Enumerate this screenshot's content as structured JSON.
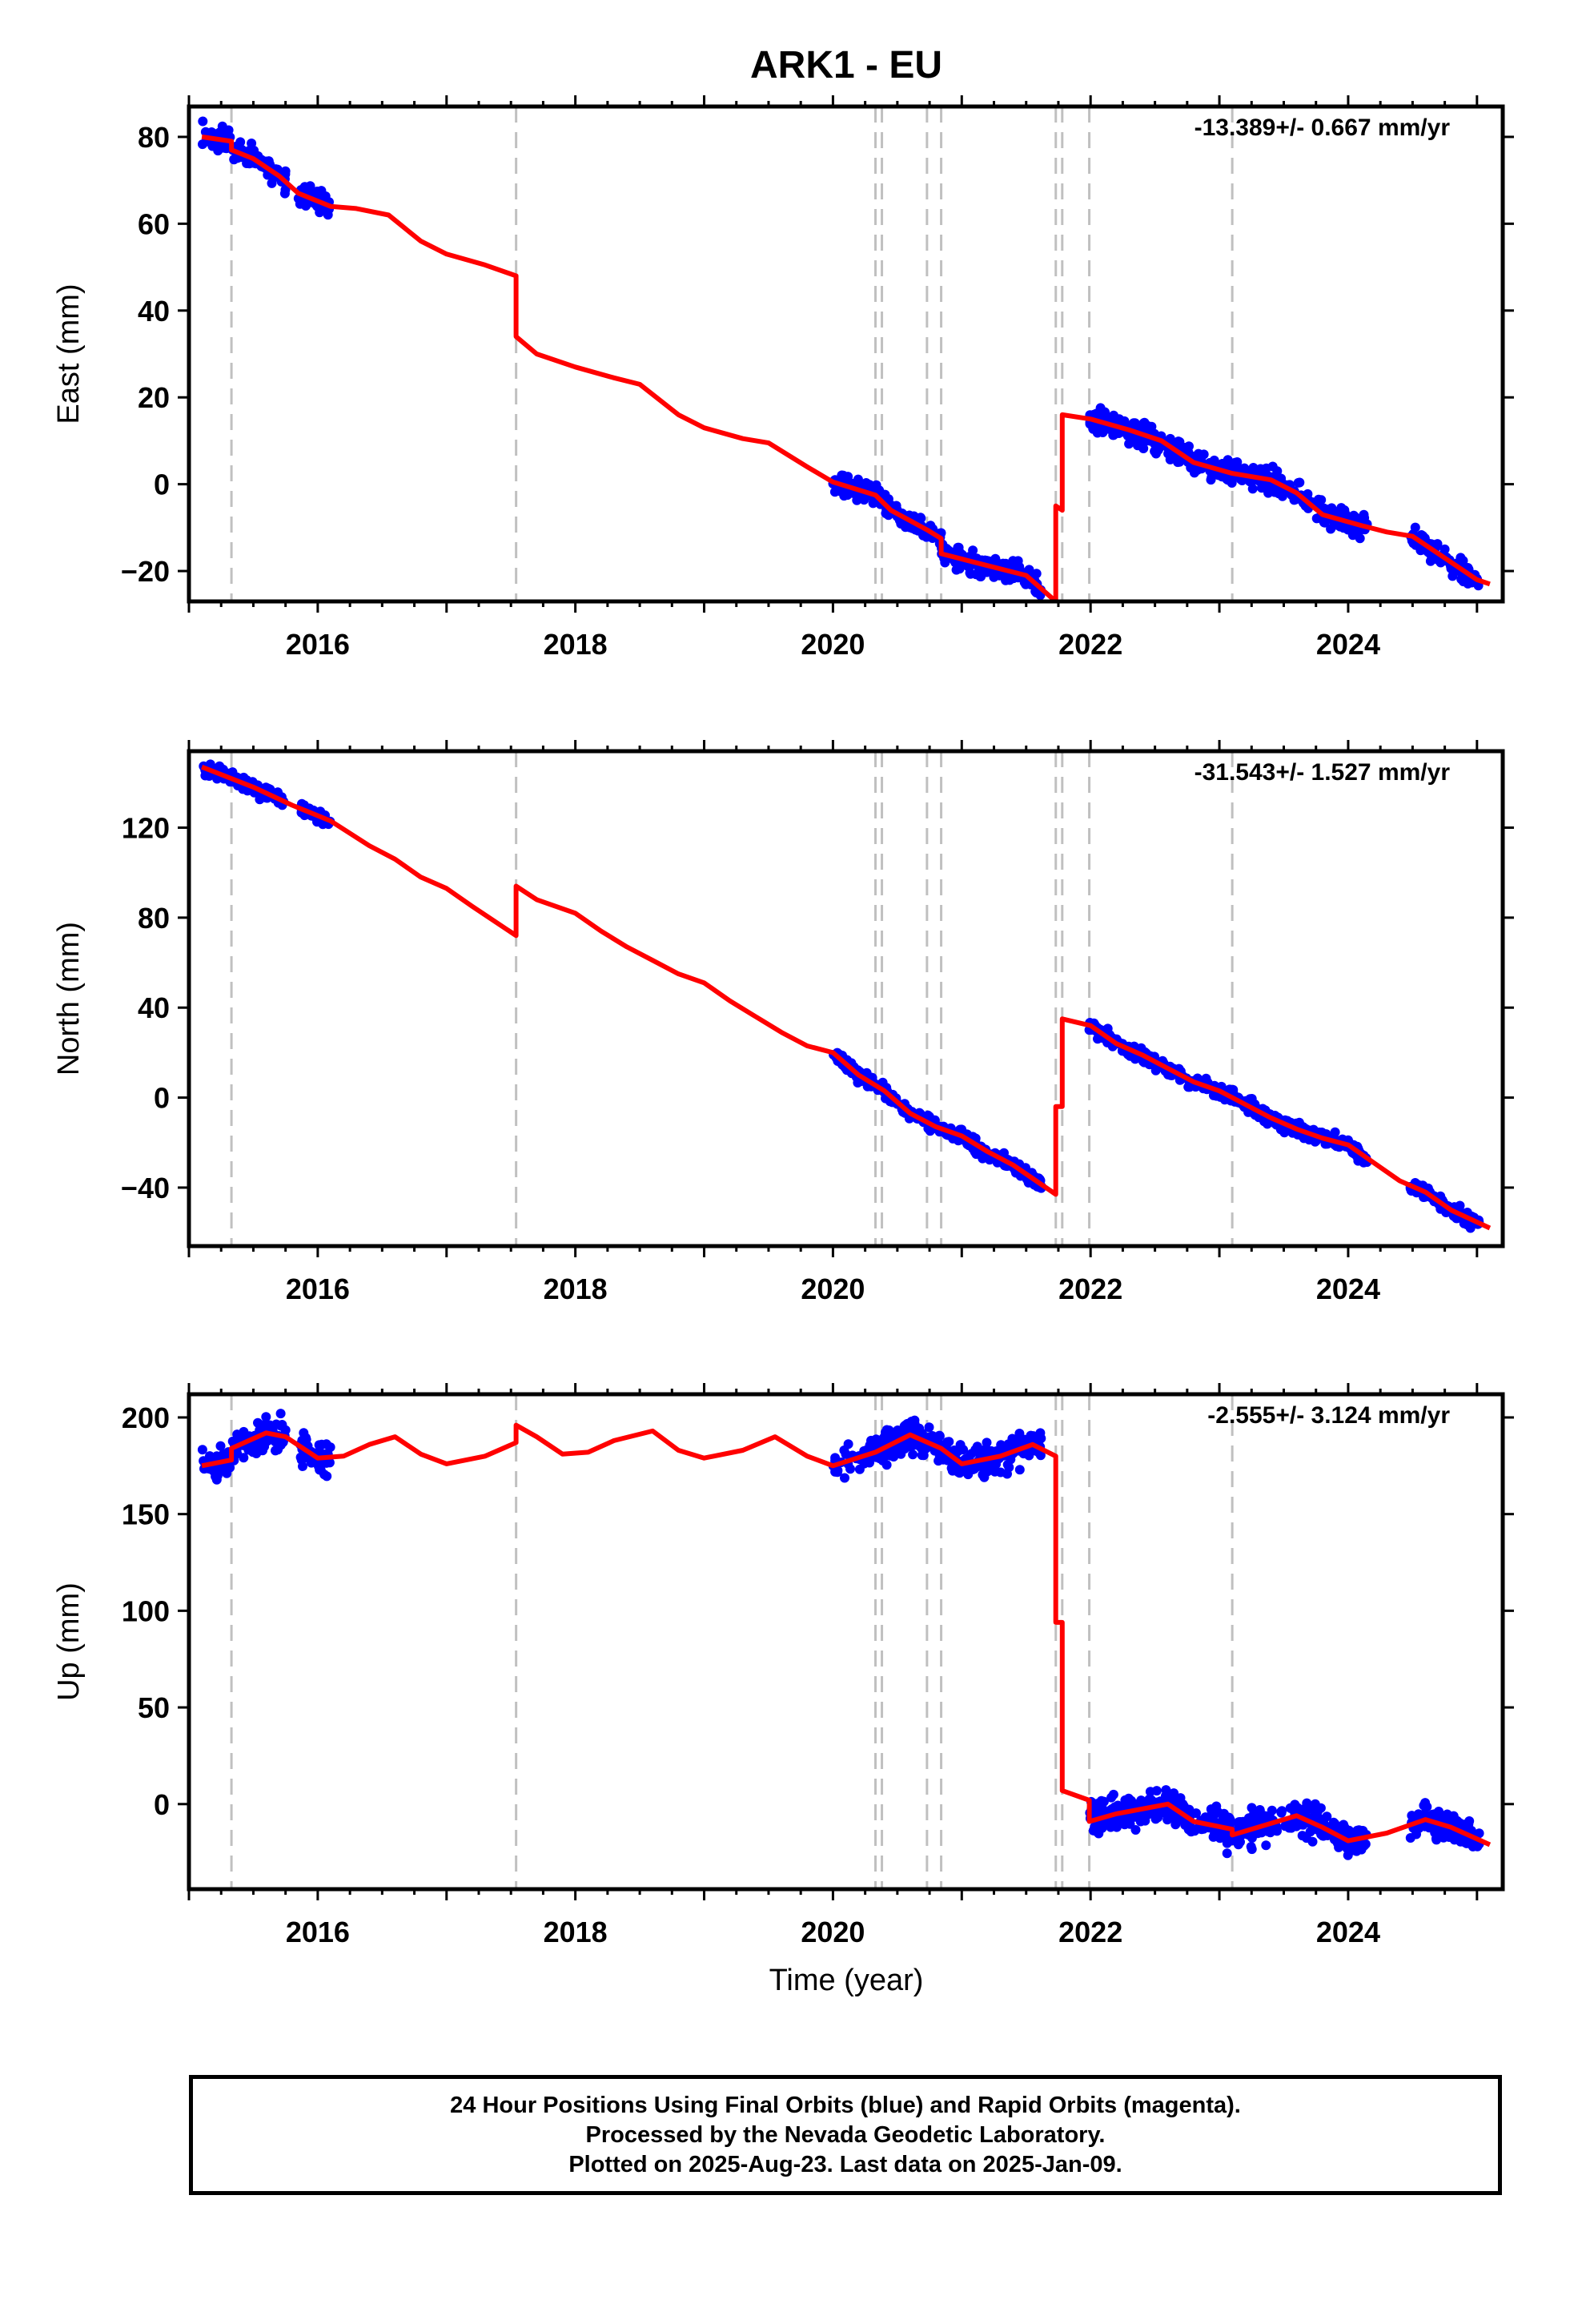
{
  "title": "ARK1 - EU",
  "xlabel": "Time (year)",
  "footer": {
    "line1": "24 Hour Positions Using Final Orbits (blue) and Rapid Orbits (magenta).",
    "line2": "Processed by the Nevada Geodetic Laboratory.",
    "line3": "Plotted on 2025-Aug-23. Last data on 2025-Jan-09."
  },
  "colors": {
    "data_points": "#0000ff",
    "model_line": "#ff0000",
    "event_lines": "#c0c0c0",
    "frame": "#000000"
  },
  "chart_data": [
    {
      "type": "scatter",
      "id": "east",
      "ylabel": "East (mm)",
      "rate_label": "-13.389+/- 0.667 mm/yr",
      "xlim": [
        2015.0,
        2025.2
      ],
      "ylim": [
        -27,
        87
      ],
      "xticks": [
        2016,
        2018,
        2020,
        2022,
        2024
      ],
      "yticks": [
        -20,
        0,
        20,
        40,
        60,
        80
      ],
      "ytick_labels": [
        "−20",
        "0",
        "20",
        "40",
        "60",
        "80"
      ],
      "event_lines": [
        2015.33,
        2017.54,
        2020.33,
        2020.38,
        2020.73,
        2020.84,
        2021.73,
        2021.78,
        2021.99,
        2023.1
      ],
      "model": [
        [
          2015.1,
          80
        ],
        [
          2015.33,
          79
        ],
        [
          2015.33,
          77
        ],
        [
          2015.5,
          75
        ],
        [
          2015.7,
          71
        ],
        [
          2015.85,
          67
        ],
        [
          2016.1,
          64
        ],
        [
          2016.3,
          63.5
        ],
        [
          2016.55,
          62
        ],
        [
          2016.8,
          56
        ],
        [
          2017.0,
          53
        ],
        [
          2017.3,
          50.5
        ],
        [
          2017.54,
          48
        ],
        [
          2017.54,
          34
        ],
        [
          2017.7,
          30
        ],
        [
          2018.0,
          27
        ],
        [
          2018.3,
          24.5
        ],
        [
          2018.5,
          23
        ],
        [
          2018.8,
          16
        ],
        [
          2019.0,
          13
        ],
        [
          2019.3,
          10.5
        ],
        [
          2019.5,
          9.5
        ],
        [
          2019.8,
          4
        ],
        [
          2020.0,
          0.5
        ],
        [
          2020.33,
          -2.5
        ],
        [
          2020.45,
          -6
        ],
        [
          2020.73,
          -10.5
        ],
        [
          2020.84,
          -12.5
        ],
        [
          2020.84,
          -16
        ],
        [
          2021.1,
          -18
        ],
        [
          2021.5,
          -21
        ],
        [
          2021.73,
          -27
        ],
        [
          2021.73,
          -5
        ],
        [
          2021.78,
          -6
        ],
        [
          2021.78,
          16
        ],
        [
          2022.0,
          15
        ],
        [
          2022.3,
          12.5
        ],
        [
          2022.55,
          10
        ],
        [
          2022.8,
          5
        ],
        [
          2023.1,
          2.5
        ],
        [
          2023.4,
          1
        ],
        [
          2023.6,
          -2
        ],
        [
          2023.8,
          -7
        ],
        [
          2024.1,
          -9.5
        ],
        [
          2024.3,
          -11
        ],
        [
          2024.5,
          -12
        ],
        [
          2024.7,
          -16
        ],
        [
          2025.0,
          -22
        ],
        [
          2025.1,
          -23
        ]
      ],
      "clusters": [
        {
          "start": 2015.1,
          "end": 2015.75,
          "count": 120,
          "spread": 1.8
        },
        {
          "start": 2015.85,
          "end": 2016.1,
          "count": 50,
          "spread": 1.8
        },
        {
          "start": 2020.0,
          "end": 2021.62,
          "count": 330,
          "spread": 1.7
        },
        {
          "start": 2021.99,
          "end": 2024.15,
          "count": 430,
          "spread": 1.9
        },
        {
          "start": 2024.48,
          "end": 2025.02,
          "count": 110,
          "spread": 1.6
        }
      ]
    },
    {
      "type": "scatter",
      "id": "north",
      "ylabel": "North (mm)",
      "rate_label": "-31.543+/- 1.527 mm/yr",
      "xlim": [
        2015.0,
        2025.2
      ],
      "ylim": [
        -66,
        154
      ],
      "xticks": [
        2016,
        2018,
        2020,
        2022,
        2024
      ],
      "yticks": [
        -40,
        0,
        40,
        80,
        120
      ],
      "ytick_labels": [
        "−40",
        "0",
        "40",
        "80",
        "120"
      ],
      "event_lines": [
        2015.33,
        2017.54,
        2020.33,
        2020.38,
        2020.73,
        2020.84,
        2021.73,
        2021.78,
        2021.99,
        2023.1
      ],
      "model": [
        [
          2015.1,
          147
        ],
        [
          2015.5,
          138
        ],
        [
          2015.8,
          130
        ],
        [
          2016.1,
          123
        ],
        [
          2016.4,
          112
        ],
        [
          2016.6,
          106
        ],
        [
          2016.8,
          98
        ],
        [
          2017.0,
          93
        ],
        [
          2017.2,
          85
        ],
        [
          2017.54,
          72
        ],
        [
          2017.54,
          94
        ],
        [
          2017.7,
          88
        ],
        [
          2018.0,
          82
        ],
        [
          2018.2,
          74
        ],
        [
          2018.4,
          67
        ],
        [
          2018.6,
          61
        ],
        [
          2018.8,
          55
        ],
        [
          2019.0,
          51
        ],
        [
          2019.2,
          43
        ],
        [
          2019.4,
          36
        ],
        [
          2019.6,
          29
        ],
        [
          2019.8,
          23
        ],
        [
          2020.0,
          20
        ],
        [
          2020.2,
          10
        ],
        [
          2020.4,
          3
        ],
        [
          2020.6,
          -7
        ],
        [
          2020.8,
          -13
        ],
        [
          2021.0,
          -17
        ],
        [
          2021.2,
          -24
        ],
        [
          2021.4,
          -30
        ],
        [
          2021.73,
          -43
        ],
        [
          2021.73,
          -4
        ],
        [
          2021.78,
          -4
        ],
        [
          2021.78,
          35
        ],
        [
          2022.0,
          32
        ],
        [
          2022.2,
          24
        ],
        [
          2022.4,
          19
        ],
        [
          2022.6,
          13
        ],
        [
          2022.8,
          7
        ],
        [
          2023.0,
          3
        ],
        [
          2023.2,
          -3
        ],
        [
          2023.4,
          -9
        ],
        [
          2023.6,
          -14
        ],
        [
          2023.8,
          -18
        ],
        [
          2024.0,
          -21
        ],
        [
          2024.2,
          -29
        ],
        [
          2024.4,
          -37
        ],
        [
          2024.6,
          -42
        ],
        [
          2024.8,
          -50
        ],
        [
          2025.1,
          -58
        ]
      ],
      "clusters": [
        {
          "start": 2015.1,
          "end": 2015.75,
          "count": 120,
          "spread": 2.2
        },
        {
          "start": 2015.85,
          "end": 2016.1,
          "count": 50,
          "spread": 2.2
        },
        {
          "start": 2020.0,
          "end": 2021.62,
          "count": 330,
          "spread": 2.2
        },
        {
          "start": 2021.99,
          "end": 2024.15,
          "count": 430,
          "spread": 2.3
        },
        {
          "start": 2024.48,
          "end": 2025.02,
          "count": 110,
          "spread": 2.2
        }
      ]
    },
    {
      "type": "scatter",
      "id": "up",
      "ylabel": "Up (mm)",
      "rate_label": "-2.555+/- 3.124 mm/yr",
      "xlim": [
        2015.0,
        2025.2
      ],
      "ylim": [
        -44,
        212
      ],
      "xticks": [
        2016,
        2018,
        2020,
        2022,
        2024
      ],
      "yticks": [
        0,
        50,
        100,
        150,
        200
      ],
      "ytick_labels": [
        "0",
        "50",
        "100",
        "150",
        "200"
      ],
      "event_lines": [
        2015.33,
        2017.54,
        2020.33,
        2020.38,
        2020.73,
        2020.84,
        2021.73,
        2021.78,
        2021.99,
        2023.1
      ],
      "model": [
        [
          2015.1,
          175
        ],
        [
          2015.33,
          178
        ],
        [
          2015.33,
          184
        ],
        [
          2015.6,
          192
        ],
        [
          2015.75,
          190
        ],
        [
          2016.0,
          179
        ],
        [
          2016.2,
          180
        ],
        [
          2016.4,
          186
        ],
        [
          2016.6,
          190
        ],
        [
          2016.8,
          181
        ],
        [
          2017.0,
          176
        ],
        [
          2017.3,
          180
        ],
        [
          2017.54,
          187
        ],
        [
          2017.54,
          196
        ],
        [
          2017.7,
          190
        ],
        [
          2017.9,
          181
        ],
        [
          2018.1,
          182
        ],
        [
          2018.3,
          188
        ],
        [
          2018.6,
          193
        ],
        [
          2018.8,
          183
        ],
        [
          2019.0,
          179
        ],
        [
          2019.3,
          183
        ],
        [
          2019.55,
          190
        ],
        [
          2019.8,
          180
        ],
        [
          2020.0,
          175
        ],
        [
          2020.33,
          182
        ],
        [
          2020.6,
          191
        ],
        [
          2020.84,
          184
        ],
        [
          2021.0,
          176
        ],
        [
          2021.3,
          180
        ],
        [
          2021.55,
          186
        ],
        [
          2021.73,
          180
        ],
        [
          2021.73,
          94
        ],
        [
          2021.78,
          94
        ],
        [
          2021.78,
          7
        ],
        [
          2021.99,
          2
        ],
        [
          2021.99,
          -9
        ],
        [
          2022.2,
          -5
        ],
        [
          2022.6,
          0
        ],
        [
          2022.8,
          -9
        ],
        [
          2023.1,
          -13
        ],
        [
          2023.1,
          -16
        ],
        [
          2023.4,
          -10
        ],
        [
          2023.6,
          -6
        ],
        [
          2023.8,
          -12
        ],
        [
          2024.0,
          -19
        ],
        [
          2024.3,
          -15
        ],
        [
          2024.6,
          -8
        ],
        [
          2024.8,
          -12
        ],
        [
          2025.1,
          -21
        ]
      ],
      "clusters": [
        {
          "start": 2015.1,
          "end": 2015.75,
          "count": 120,
          "spread": 6
        },
        {
          "start": 2015.85,
          "end": 2016.1,
          "count": 50,
          "spread": 6
        },
        {
          "start": 2020.0,
          "end": 2021.62,
          "count": 330,
          "spread": 6
        },
        {
          "start": 2021.99,
          "end": 2024.15,
          "count": 430,
          "spread": 6
        },
        {
          "start": 2024.48,
          "end": 2025.02,
          "count": 110,
          "spread": 6
        }
      ]
    }
  ]
}
